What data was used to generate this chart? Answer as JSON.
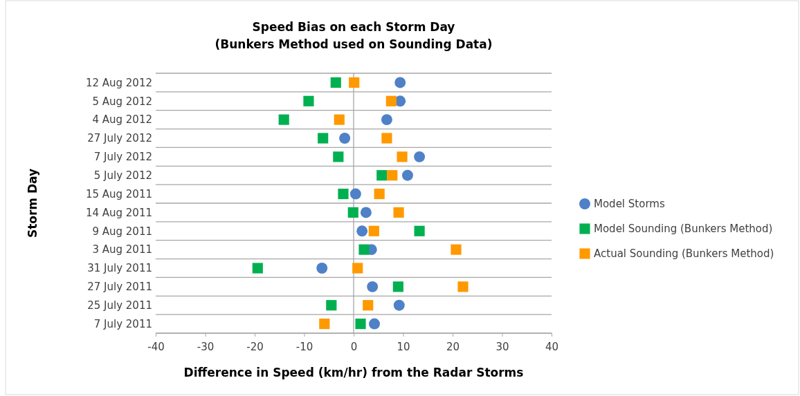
{
  "chart_data": {
    "type": "scatter",
    "orientation": "horizontal",
    "title": "Speed Bias on each Storm Day\n(Bunkers Method used on Sounding Data)",
    "xlabel": "Difference in Speed (km/hr) from the Radar Storms",
    "ylabel": "Storm Day",
    "categories": [
      "12 Aug 2012",
      "5 Aug 2012",
      "4 Aug 2012",
      "27 July 2012",
      "7 July 2012",
      "5 July 2012",
      "15 Aug 2011",
      "14 Aug 2011",
      "9 Aug 2011",
      "3 Aug 2011",
      "31 July 2011",
      "27 July 2011",
      "25 July 2011",
      "7 July 2011"
    ],
    "xlim": [
      -40,
      40
    ],
    "xticks": [
      -40,
      -30,
      -20,
      -10,
      0,
      10,
      20,
      30,
      40
    ],
    "grid": "y",
    "legend": "right",
    "ref_lines": [
      {
        "axis": "x",
        "value": 0,
        "color": "#a6a6a6"
      }
    ],
    "series": [
      {
        "name": "Model Storms",
        "color": "#4f81c7",
        "marker": "circle",
        "values": [
          9.4,
          9.4,
          6.7,
          -1.8,
          13.3,
          10.9,
          0.4,
          2.5,
          1.7,
          3.6,
          -6.4,
          3.8,
          9.2,
          4.2
        ]
      },
      {
        "name": "Model Sounding (Bunkers Method)",
        "color": "#00b050",
        "marker": "square",
        "values": [
          -3.6,
          -9.1,
          -14.1,
          -6.2,
          -3.1,
          5.7,
          -2.1,
          -0.1,
          13.3,
          2.1,
          -19.4,
          9.0,
          -4.5,
          1.4
        ]
      },
      {
        "name": "Actual Sounding (Bunkers Method)",
        "color": "#ff9900",
        "marker": "square",
        "values": [
          0.1,
          7.6,
          -2.9,
          6.7,
          9.8,
          7.8,
          5.2,
          9.1,
          4.1,
          20.7,
          0.8,
          22.1,
          2.9,
          -5.9
        ]
      }
    ]
  }
}
